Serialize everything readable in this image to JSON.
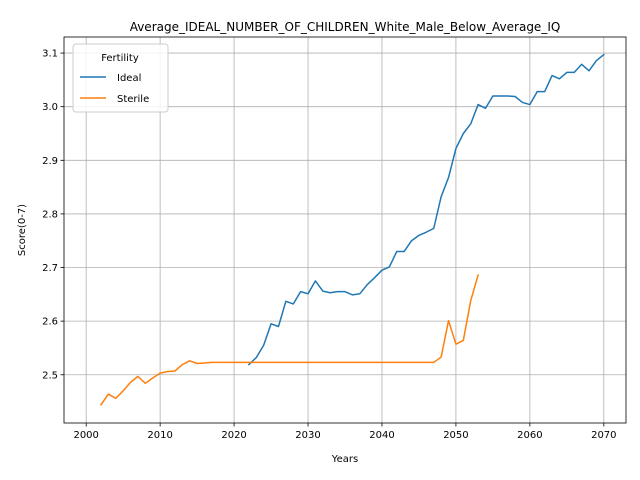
{
  "chart_data": {
    "type": "line",
    "title": "Average_IDEAL_NUMBER_OF_CHILDREN_White_Male_Below_Average_IQ",
    "xlabel": "Years",
    "ylabel": "Score(0-7)",
    "xlim": [
      1997,
      2073
    ],
    "ylim": [
      2.41,
      3.13
    ],
    "x_ticks": [
      2000,
      2010,
      2020,
      2030,
      2040,
      2050,
      2060,
      2070
    ],
    "y_ticks": [
      2.5,
      2.6,
      2.7,
      2.8,
      2.9,
      3.0,
      3.1
    ],
    "x_tick_labels": [
      "2000",
      "2010",
      "2020",
      "2030",
      "2040",
      "2050",
      "2060",
      "2070"
    ],
    "y_tick_labels": [
      "2.5",
      "2.6",
      "2.7",
      "2.8",
      "2.9",
      "3.0",
      "3.1"
    ],
    "grid": true,
    "legend": {
      "title": "Fertility",
      "position": "upper-left"
    },
    "series": [
      {
        "name": "Ideal",
        "color": "#1f77b4",
        "x": [
          2022,
          2023,
          2024,
          2025,
          2026,
          2027,
          2028,
          2029,
          2030,
          2031,
          2032,
          2033,
          2034,
          2035,
          2036,
          2037,
          2038,
          2039,
          2040,
          2041,
          2042,
          2043,
          2044,
          2045,
          2046,
          2047,
          2048,
          2049,
          2050,
          2051,
          2052,
          2053,
          2054,
          2055,
          2056,
          2057,
          2058,
          2059,
          2060,
          2061,
          2062,
          2063,
          2064,
          2065,
          2066,
          2067,
          2068,
          2069,
          2070
        ],
        "values": [
          2.519,
          2.532,
          2.555,
          2.595,
          2.59,
          2.637,
          2.632,
          2.655,
          2.651,
          2.675,
          2.656,
          2.653,
          2.655,
          2.655,
          2.649,
          2.651,
          2.668,
          2.681,
          2.695,
          2.701,
          2.73,
          2.73,
          2.75,
          2.76,
          2.766,
          2.773,
          2.832,
          2.868,
          2.922,
          2.95,
          2.968,
          3.004,
          2.997,
          3.02,
          3.02,
          3.02,
          3.019,
          3.008,
          3.004,
          3.028,
          3.028,
          3.058,
          3.052,
          3.064,
          3.064,
          3.079,
          3.067,
          3.086,
          3.097
        ]
      },
      {
        "name": "Sterile",
        "color": "#ff7f0e",
        "x": [
          2002,
          2003,
          2004,
          2005,
          2006,
          2007,
          2008,
          2009,
          2010,
          2011,
          2012,
          2013,
          2014,
          2015,
          2016,
          2017,
          2018,
          2019,
          2020,
          2021,
          2022,
          2023,
          2024,
          2025,
          2026,
          2027,
          2028,
          2029,
          2030,
          2031,
          2032,
          2033,
          2034,
          2035,
          2036,
          2037,
          2038,
          2039,
          2040,
          2041,
          2042,
          2043,
          2044,
          2045,
          2046,
          2047,
          2048,
          2049,
          2050,
          2051,
          2052,
          2053
        ],
        "values": [
          2.444,
          2.464,
          2.456,
          2.47,
          2.486,
          2.497,
          2.484,
          2.494,
          2.503,
          2.506,
          2.507,
          2.519,
          2.526,
          2.521,
          2.522,
          2.523,
          2.523,
          2.523,
          2.523,
          2.523,
          2.523,
          2.523,
          2.523,
          2.523,
          2.523,
          2.523,
          2.523,
          2.523,
          2.523,
          2.523,
          2.523,
          2.523,
          2.523,
          2.523,
          2.523,
          2.523,
          2.523,
          2.523,
          2.523,
          2.523,
          2.523,
          2.523,
          2.523,
          2.523,
          2.523,
          2.523,
          2.533,
          2.601,
          2.557,
          2.564,
          2.638,
          2.686
        ]
      }
    ]
  }
}
